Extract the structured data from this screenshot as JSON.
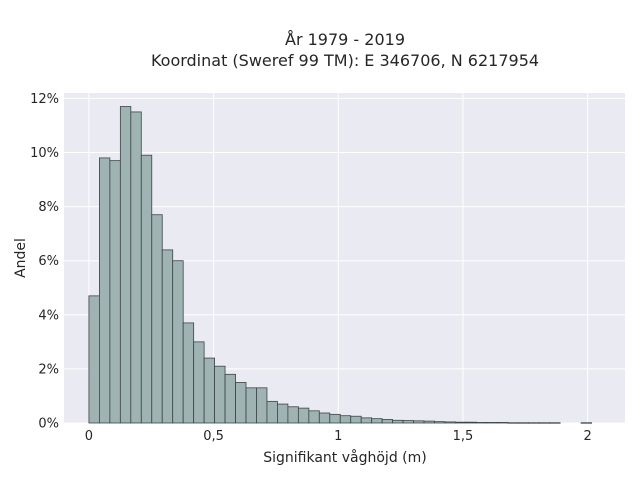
{
  "chart_data": {
    "type": "bar",
    "title_lines": [
      "År 1979 - 2019",
      "Koordinat (Sweref 99 TM): E 346706, N 6217954"
    ],
    "xlabel": "Signifikant våghöjd (m)",
    "ylabel": "Andel",
    "xlim": [
      -0.1,
      2.15
    ],
    "ylim": [
      0,
      0.122
    ],
    "xticks": [
      0,
      0.5,
      1,
      1.5,
      2
    ],
    "xtick_labels": [
      "0",
      "0,5",
      "1",
      "1,5",
      "2"
    ],
    "yticks": [
      0,
      0.02,
      0.04,
      0.06,
      0.08,
      0.1,
      0.12
    ],
    "ytick_labels": [
      "0%",
      "2%",
      "4%",
      "6%",
      "8%",
      "10%",
      "12%"
    ],
    "bin_width": 0.042,
    "bin_start": 0,
    "values": [
      0.047,
      0.098,
      0.097,
      0.117,
      0.115,
      0.099,
      0.077,
      0.064,
      0.06,
      0.037,
      0.03,
      0.024,
      0.021,
      0.018,
      0.015,
      0.013,
      0.013,
      0.008,
      0.007,
      0.006,
      0.0055,
      0.0045,
      0.0037,
      0.0032,
      0.0027,
      0.0025,
      0.0019,
      0.0016,
      0.0013,
      0.001,
      0.0009,
      0.0008,
      0.0007,
      0.0005,
      0.0004,
      0.0003,
      0.0003,
      0.0002,
      0.0002,
      0.0002,
      0.0001,
      0.0001,
      0.0001,
      0.0001,
      0.0001,
      0.0,
      0.0,
      0.0001
    ],
    "background": "#eaeaf2",
    "bar_color": "#9fb3b3",
    "grid": true
  }
}
